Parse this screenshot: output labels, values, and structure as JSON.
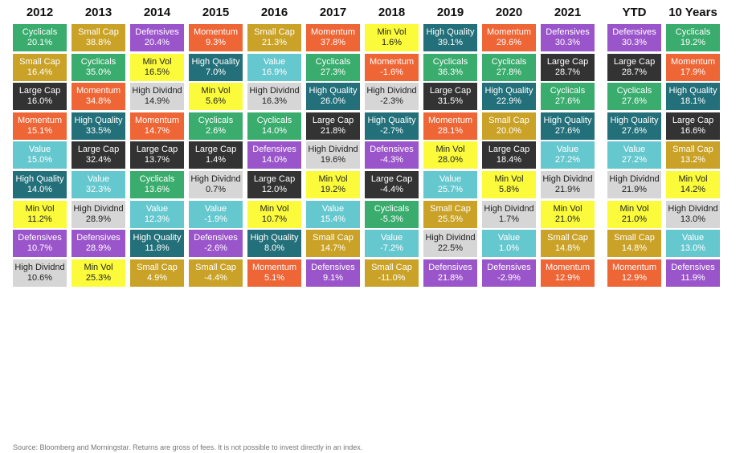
{
  "chart_data": {
    "type": "table",
    "columns": [
      "2012",
      "2013",
      "2014",
      "2015",
      "2016",
      "2017",
      "2018",
      "2019",
      "2020",
      "2021",
      "YTD",
      "10 Years"
    ],
    "category_colors": {
      "Cyclicals": "#3aac6e",
      "Small Cap": "#c9a227",
      "Defensives": "#9b55cb",
      "Momentum": "#ee6536",
      "Min Vol": "#fbfb3c",
      "High Quality": "#23707a",
      "Value": "#66c8cf",
      "Large Cap": "#333333",
      "High Dividnd": "#d6d6d6"
    },
    "grid": [
      [
        {
          "name": "Cyclicals",
          "value": "20.1%"
        },
        {
          "name": "Small Cap",
          "value": "38.8%"
        },
        {
          "name": "Defensives",
          "value": "20.4%"
        },
        {
          "name": "Momentum",
          "value": "9.3%"
        },
        {
          "name": "Small Cap",
          "value": "21.3%"
        },
        {
          "name": "Momentum",
          "value": "37.8%"
        },
        {
          "name": "Min Vol",
          "value": "1.6%"
        },
        {
          "name": "High Quality",
          "value": "39.1%"
        },
        {
          "name": "Momentum",
          "value": "29.6%"
        },
        {
          "name": "Defensives",
          "value": "30.3%"
        },
        {
          "name": "Defensives",
          "value": "30.3%"
        },
        {
          "name": "Cyclicals",
          "value": "19.2%"
        }
      ],
      [
        {
          "name": "Small Cap",
          "value": "16.4%"
        },
        {
          "name": "Cyclicals",
          "value": "35.0%"
        },
        {
          "name": "Min Vol",
          "value": "16.5%"
        },
        {
          "name": "High Quality",
          "value": "7.0%"
        },
        {
          "name": "Value",
          "value": "16.9%"
        },
        {
          "name": "Cyclicals",
          "value": "27.3%"
        },
        {
          "name": "Momentum",
          "value": "-1.6%"
        },
        {
          "name": "Cyclicals",
          "value": "36.3%"
        },
        {
          "name": "Cyclicals",
          "value": "27.8%"
        },
        {
          "name": "Large Cap",
          "value": "28.7%"
        },
        {
          "name": "Large Cap",
          "value": "28.7%"
        },
        {
          "name": "Momentum",
          "value": "17.9%"
        }
      ],
      [
        {
          "name": "Large Cap",
          "value": "16.0%"
        },
        {
          "name": "Momentum",
          "value": "34.8%"
        },
        {
          "name": "High Dividnd",
          "value": "14.9%"
        },
        {
          "name": "Min Vol",
          "value": "5.6%"
        },
        {
          "name": "High Dividnd",
          "value": "16.3%"
        },
        {
          "name": "High Quality",
          "value": "26.0%"
        },
        {
          "name": "High Dividnd",
          "value": "-2.3%"
        },
        {
          "name": "Large Cap",
          "value": "31.5%"
        },
        {
          "name": "High Quality",
          "value": "22.9%"
        },
        {
          "name": "Cyclicals",
          "value": "27.6%"
        },
        {
          "name": "Cyclicals",
          "value": "27.6%"
        },
        {
          "name": "High Quality",
          "value": "18.1%"
        }
      ],
      [
        {
          "name": "Momentum",
          "value": "15.1%"
        },
        {
          "name": "High Quality",
          "value": "33.5%"
        },
        {
          "name": "Momentum",
          "value": "14.7%"
        },
        {
          "name": "Cyclicals",
          "value": "2.6%"
        },
        {
          "name": "Cyclicals",
          "value": "14.0%"
        },
        {
          "name": "Large Cap",
          "value": "21.8%"
        },
        {
          "name": "High Quality",
          "value": "-2.7%"
        },
        {
          "name": "Momentum",
          "value": "28.1%"
        },
        {
          "name": "Small Cap",
          "value": "20.0%"
        },
        {
          "name": "High Quality",
          "value": "27.6%"
        },
        {
          "name": "High Quality",
          "value": "27.6%"
        },
        {
          "name": "Large Cap",
          "value": "16.6%"
        }
      ],
      [
        {
          "name": "Value",
          "value": "15.0%"
        },
        {
          "name": "Large Cap",
          "value": "32.4%"
        },
        {
          "name": "Large Cap",
          "value": "13.7%"
        },
        {
          "name": "Large Cap",
          "value": "1.4%"
        },
        {
          "name": "Defensives",
          "value": "14.0%"
        },
        {
          "name": "High Dividnd",
          "value": "19.6%"
        },
        {
          "name": "Defensives",
          "value": "-4.3%"
        },
        {
          "name": "Min Vol",
          "value": "28.0%"
        },
        {
          "name": "Large Cap",
          "value": "18.4%"
        },
        {
          "name": "Value",
          "value": "27.2%"
        },
        {
          "name": "Value",
          "value": "27.2%"
        },
        {
          "name": "Small Cap",
          "value": "13.2%"
        }
      ],
      [
        {
          "name": "High Quality",
          "value": "14.0%"
        },
        {
          "name": "Value",
          "value": "32.3%"
        },
        {
          "name": "Cyclicals",
          "value": "13.6%"
        },
        {
          "name": "High Dividnd",
          "value": "0.7%"
        },
        {
          "name": "Large Cap",
          "value": "12.0%"
        },
        {
          "name": "Min Vol",
          "value": "19.2%"
        },
        {
          "name": "Large Cap",
          "value": "-4.4%"
        },
        {
          "name": "Value",
          "value": "25.7%"
        },
        {
          "name": "Min Vol",
          "value": "5.8%"
        },
        {
          "name": "High Dividnd",
          "value": "21.9%"
        },
        {
          "name": "High Dividnd",
          "value": "21.9%"
        },
        {
          "name": "Min Vol",
          "value": "14.2%"
        }
      ],
      [
        {
          "name": "Min Vol",
          "value": "11.2%"
        },
        {
          "name": "High Dividnd",
          "value": "28.9%"
        },
        {
          "name": "Value",
          "value": "12.3%"
        },
        {
          "name": "Value",
          "value": "-1.9%"
        },
        {
          "name": "Min Vol",
          "value": "10.7%"
        },
        {
          "name": "Value",
          "value": "15.4%"
        },
        {
          "name": "Cyclicals",
          "value": "-5.3%"
        },
        {
          "name": "Small Cap",
          "value": "25.5%"
        },
        {
          "name": "High Dividnd",
          "value": "1.7%"
        },
        {
          "name": "Min Vol",
          "value": "21.0%"
        },
        {
          "name": "Min Vol",
          "value": "21.0%"
        },
        {
          "name": "High Dividnd",
          "value": "13.0%"
        }
      ],
      [
        {
          "name": "Defensives",
          "value": "10.7%"
        },
        {
          "name": "Defensives",
          "value": "28.9%"
        },
        {
          "name": "High Quality",
          "value": "11.8%"
        },
        {
          "name": "Defensives",
          "value": "-2.6%"
        },
        {
          "name": "High Quality",
          "value": "8.0%"
        },
        {
          "name": "Small Cap",
          "value": "14.7%"
        },
        {
          "name": "Value",
          "value": "-7.2%"
        },
        {
          "name": "High Dividnd",
          "value": "22.5%"
        },
        {
          "name": "Value",
          "value": "1.0%"
        },
        {
          "name": "Small Cap",
          "value": "14.8%"
        },
        {
          "name": "Small Cap",
          "value": "14.8%"
        },
        {
          "name": "Value",
          "value": "13.0%"
        }
      ],
      [
        {
          "name": "High Dividnd",
          "value": "10.6%"
        },
        {
          "name": "Min Vol",
          "value": "25.3%"
        },
        {
          "name": "Small Cap",
          "value": "4.9%"
        },
        {
          "name": "Small Cap",
          "value": "-4.4%"
        },
        {
          "name": "Momentum",
          "value": "5.1%"
        },
        {
          "name": "Defensives",
          "value": "9.1%"
        },
        {
          "name": "Small Cap",
          "value": "-11.0%"
        },
        {
          "name": "Defensives",
          "value": "21.8%"
        },
        {
          "name": "Defensives",
          "value": "-2.9%"
        },
        {
          "name": "Momentum",
          "value": "12.9%"
        },
        {
          "name": "Momentum",
          "value": "12.9%"
        },
        {
          "name": "Defensives",
          "value": "11.9%"
        }
      ]
    ]
  },
  "source": "Source: Bloomberg and Morningstar. Returns are gross of fees. It is not possible to invest directly in an index."
}
